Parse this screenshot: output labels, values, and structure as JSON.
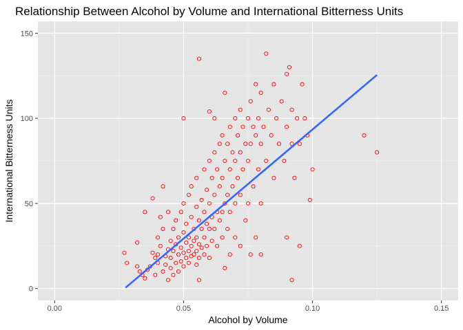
{
  "chart_data": {
    "type": "scatter",
    "title": "Relationship Between Alcohol by Volume and International Bitterness Units",
    "xlabel": "Alcohol by Volume",
    "ylabel": "International Bitterness Units",
    "xlim": [
      -0.0065,
      0.1565
    ],
    "ylim": [
      -7,
      157
    ],
    "x_ticks": [
      0.0,
      0.05,
      0.1,
      0.15
    ],
    "x_tick_labels": [
      "0.00",
      "0.05",
      "0.10",
      "0.15"
    ],
    "y_ticks": [
      0,
      50,
      100,
      150
    ],
    "y_tick_labels": [
      "0",
      "50",
      "100",
      "150"
    ],
    "grid": true,
    "background": "#e5e5e5",
    "point_color": "#ff0000",
    "line_color": "#3366ff",
    "trend_line": {
      "x": [
        0.0275,
        0.125
      ],
      "y": [
        0.5,
        125.5
      ]
    },
    "points": [
      [
        0.027,
        21
      ],
      [
        0.028,
        15
      ],
      [
        0.032,
        27
      ],
      [
        0.032,
        13
      ],
      [
        0.033,
        10
      ],
      [
        0.034,
        8
      ],
      [
        0.035,
        6
      ],
      [
        0.035,
        45
      ],
      [
        0.036,
        11
      ],
      [
        0.037,
        13
      ],
      [
        0.038,
        21
      ],
      [
        0.038,
        53
      ],
      [
        0.039,
        8
      ],
      [
        0.039,
        18
      ],
      [
        0.04,
        15
      ],
      [
        0.04,
        30
      ],
      [
        0.04,
        20
      ],
      [
        0.041,
        42
      ],
      [
        0.041,
        25
      ],
      [
        0.042,
        10
      ],
      [
        0.042,
        35
      ],
      [
        0.042,
        60
      ],
      [
        0.043,
        19
      ],
      [
        0.043,
        14
      ],
      [
        0.044,
        23
      ],
      [
        0.044,
        5
      ],
      [
        0.044,
        45
      ],
      [
        0.045,
        28
      ],
      [
        0.045,
        18
      ],
      [
        0.045,
        12
      ],
      [
        0.046,
        35
      ],
      [
        0.046,
        22
      ],
      [
        0.046,
        8
      ],
      [
        0.047,
        40
      ],
      [
        0.047,
        15
      ],
      [
        0.047,
        26
      ],
      [
        0.048,
        30
      ],
      [
        0.048,
        20
      ],
      [
        0.048,
        10
      ],
      [
        0.049,
        45
      ],
      [
        0.049,
        24
      ],
      [
        0.049,
        16
      ],
      [
        0.05,
        50
      ],
      [
        0.05,
        33
      ],
      [
        0.05,
        21
      ],
      [
        0.05,
        13
      ],
      [
        0.05,
        100
      ],
      [
        0.051,
        38
      ],
      [
        0.051,
        27
      ],
      [
        0.051,
        18
      ],
      [
        0.052,
        55
      ],
      [
        0.052,
        30
      ],
      [
        0.052,
        22
      ],
      [
        0.052,
        15
      ],
      [
        0.053,
        42
      ],
      [
        0.053,
        25
      ],
      [
        0.053,
        19
      ],
      [
        0.053,
        60
      ],
      [
        0.054,
        35
      ],
      [
        0.054,
        28
      ],
      [
        0.054,
        20
      ],
      [
        0.055,
        48
      ],
      [
        0.055,
        30
      ],
      [
        0.055,
        22
      ],
      [
        0.055,
        14
      ],
      [
        0.055,
        65
      ],
      [
        0.056,
        40
      ],
      [
        0.056,
        26
      ],
      [
        0.056,
        18
      ],
      [
        0.056,
        5
      ],
      [
        0.057,
        52
      ],
      [
        0.057,
        35
      ],
      [
        0.057,
        24
      ],
      [
        0.058,
        70
      ],
      [
        0.058,
        45
      ],
      [
        0.058,
        30
      ],
      [
        0.058,
        20
      ],
      [
        0.059,
        58
      ],
      [
        0.059,
        38
      ],
      [
        0.059,
        25
      ],
      [
        0.06,
        75
      ],
      [
        0.06,
        50
      ],
      [
        0.06,
        35
      ],
      [
        0.06,
        104
      ],
      [
        0.06,
        18
      ],
      [
        0.061,
        65
      ],
      [
        0.061,
        42
      ],
      [
        0.061,
        28
      ],
      [
        0.062,
        80
      ],
      [
        0.062,
        55
      ],
      [
        0.062,
        35
      ],
      [
        0.063,
        70
      ],
      [
        0.063,
        45
      ],
      [
        0.063,
        25
      ],
      [
        0.064,
        85
      ],
      [
        0.064,
        60
      ],
      [
        0.064,
        40
      ],
      [
        0.065,
        90
      ],
      [
        0.065,
        65
      ],
      [
        0.065,
        45
      ],
      [
        0.065,
        30
      ],
      [
        0.066,
        75
      ],
      [
        0.066,
        50
      ],
      [
        0.066,
        115
      ],
      [
        0.067,
        85
      ],
      [
        0.067,
        55
      ],
      [
        0.067,
        35
      ],
      [
        0.068,
        95
      ],
      [
        0.068,
        70
      ],
      [
        0.068,
        45
      ],
      [
        0.069,
        80
      ],
      [
        0.069,
        60
      ],
      [
        0.07,
        100
      ],
      [
        0.07,
        75
      ],
      [
        0.07,
        50
      ],
      [
        0.07,
        30
      ],
      [
        0.071,
        90
      ],
      [
        0.071,
        65
      ],
      [
        0.072,
        105
      ],
      [
        0.072,
        80
      ],
      [
        0.072,
        55
      ],
      [
        0.073,
        95
      ],
      [
        0.073,
        70
      ],
      [
        0.074,
        85
      ],
      [
        0.074,
        40
      ],
      [
        0.075,
        100
      ],
      [
        0.075,
        75
      ],
      [
        0.075,
        50
      ],
      [
        0.076,
        110
      ],
      [
        0.076,
        85
      ],
      [
        0.077,
        95
      ],
      [
        0.077,
        60
      ],
      [
        0.078,
        120
      ],
      [
        0.078,
        90
      ],
      [
        0.078,
        30
      ],
      [
        0.079,
        100
      ],
      [
        0.079,
        70
      ],
      [
        0.08,
        115
      ],
      [
        0.08,
        85
      ],
      [
        0.08,
        50
      ],
      [
        0.081,
        95
      ],
      [
        0.082,
        138
      ],
      [
        0.082,
        75
      ],
      [
        0.083,
        105
      ],
      [
        0.084,
        90
      ],
      [
        0.085,
        120
      ],
      [
        0.085,
        65
      ],
      [
        0.086,
        100
      ],
      [
        0.087,
        85
      ],
      [
        0.088,
        110
      ],
      [
        0.089,
        75
      ],
      [
        0.09,
        126
      ],
      [
        0.09,
        95
      ],
      [
        0.09,
        30
      ],
      [
        0.091,
        130
      ],
      [
        0.092,
        105
      ],
      [
        0.092,
        85
      ],
      [
        0.093,
        65
      ],
      [
        0.094,
        100
      ],
      [
        0.095,
        85
      ],
      [
        0.096,
        120
      ],
      [
        0.097,
        100
      ],
      [
        0.098,
        90
      ],
      [
        0.099,
        52
      ],
      [
        0.1,
        70
      ],
      [
        0.12,
        90
      ],
      [
        0.125,
        80
      ],
      [
        0.092,
        5
      ],
      [
        0.056,
        135
      ],
      [
        0.062,
        100
      ],
      [
        0.066,
        12
      ],
      [
        0.068,
        20
      ],
      [
        0.072,
        25
      ],
      [
        0.076,
        20
      ],
      [
        0.08,
        20
      ],
      [
        0.095,
        25
      ]
    ]
  }
}
